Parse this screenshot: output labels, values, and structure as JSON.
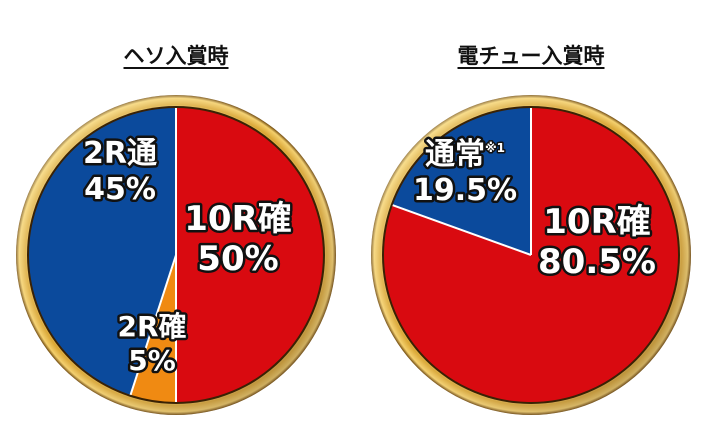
{
  "colors": {
    "red": "#d90a10",
    "blue": "#0b4a9c",
    "orange": "#f08a12",
    "gold_light": "#fbe48a",
    "gold_mid": "#d9a532",
    "gold_dark": "#6b4408",
    "divider": "#ffffff"
  },
  "chart_data": [
    {
      "type": "pie",
      "title": "ヘソ入賞時",
      "slices": [
        {
          "label": "10R確",
          "value": 50,
          "value_label": "50%",
          "color": "#d90a10"
        },
        {
          "label": "2R確",
          "value": 5,
          "value_label": "5%",
          "color": "#f08a12"
        },
        {
          "label": "2R通",
          "value": 45,
          "value_label": "45%",
          "color": "#0b4a9c"
        }
      ]
    },
    {
      "type": "pie",
      "title": "電チュー入賞時",
      "slices": [
        {
          "label": "10R確",
          "value": 80.5,
          "value_label": "80.5%",
          "color": "#d90a10"
        },
        {
          "label": "通常",
          "note": "※1",
          "value": 19.5,
          "value_label": "19.5%",
          "color": "#0b4a9c"
        }
      ]
    }
  ]
}
